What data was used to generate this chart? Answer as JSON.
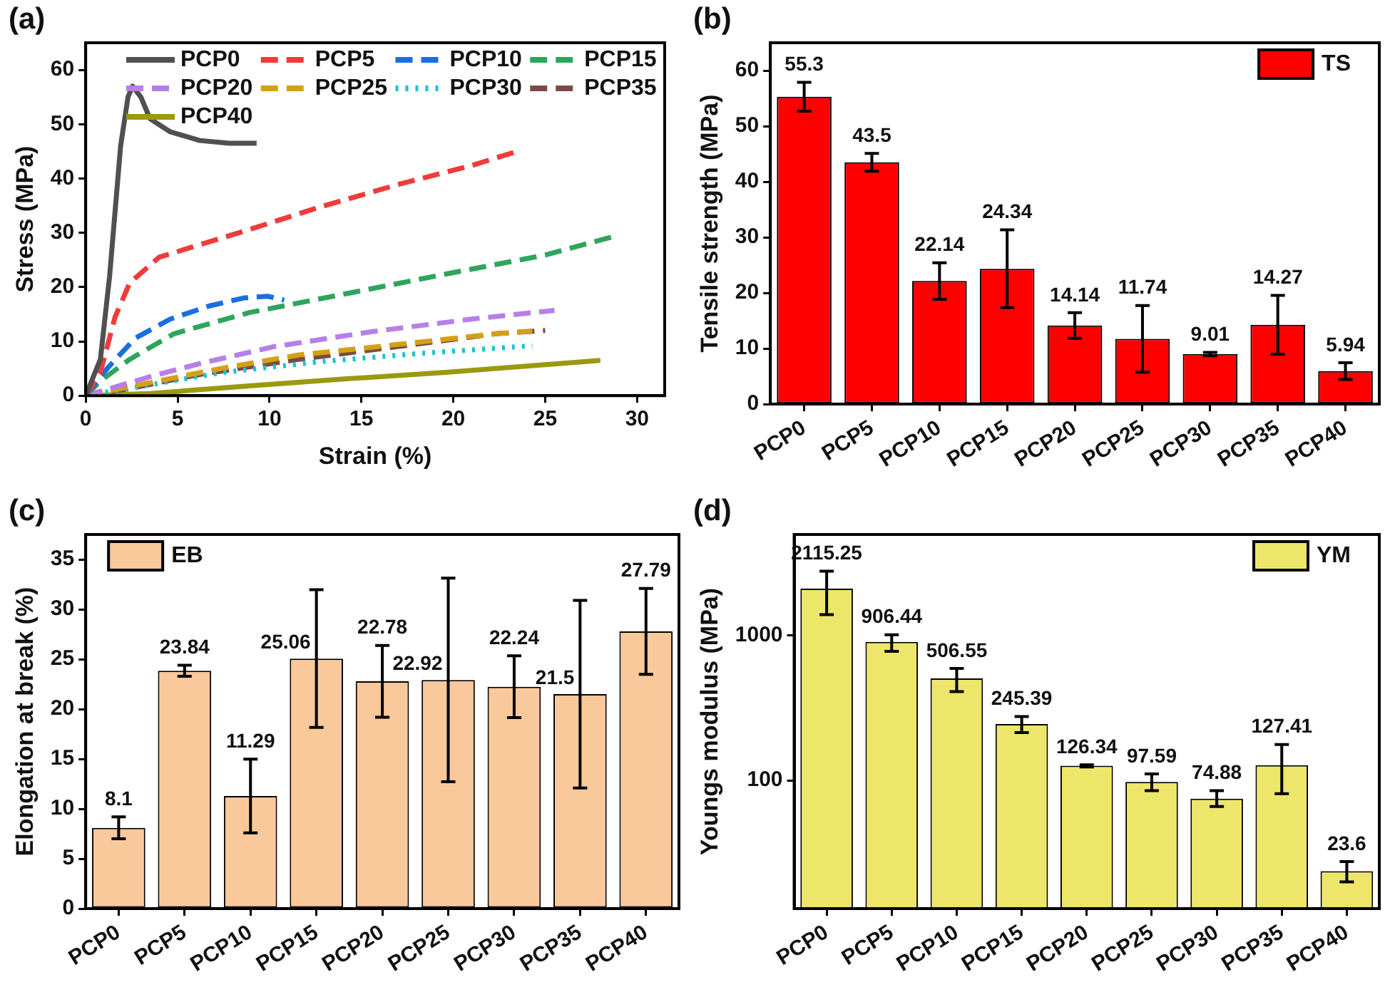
{
  "chart_data": [
    {
      "type": "line",
      "title": "(a)",
      "xlabel": "Strain (%)",
      "ylabel": "Stress (MPa)",
      "xlim": [
        0,
        31.5
      ],
      "xticks": [
        0,
        5,
        10,
        15,
        20,
        25,
        30
      ],
      "ylim": [
        0,
        65
      ],
      "yticks": [
        0,
        10,
        20,
        30,
        40,
        50,
        60
      ],
      "grid": false,
      "legend": "top",
      "marker": "none",
      "series": [
        {
          "name": "PCP0",
          "color": "#505050",
          "line_style": "solid",
          "x": [
            0,
            0.8,
            1.3,
            1.9,
            2.3,
            2.55,
            3,
            3.5,
            4.6,
            6.2,
            7.8,
            9.3
          ],
          "values": [
            0,
            6.7,
            22,
            46,
            55,
            57,
            55,
            51,
            48.6,
            47,
            46.5,
            46.5
          ]
        },
        {
          "name": "PCP5",
          "color": "#ef3b3b",
          "line_style": "dashed",
          "x": [
            0,
            0.8,
            1.6,
            2.4,
            4,
            6.2,
            8.9,
            12.9,
            16.9,
            21,
            23.5
          ],
          "values": [
            0,
            4.3,
            14.5,
            20.8,
            25.5,
            27.8,
            30.6,
            34.9,
            38.8,
            42.4,
            45
          ]
        },
        {
          "name": "PCP10",
          "color": "#1a6fdf",
          "line_style": "dashed",
          "x": [
            0,
            0.8,
            1.3,
            2.7,
            4.6,
            6.7,
            8.6,
            9.9,
            10.8
          ],
          "values": [
            0,
            3.5,
            5.5,
            10.6,
            14.1,
            16.5,
            18,
            18.3,
            17.6
          ]
        },
        {
          "name": "PCP15",
          "color": "#2ea55c",
          "line_style": "dashed",
          "x": [
            0,
            0.8,
            2.4,
            4.8,
            8.9,
            14.2,
            19.6,
            25,
            28.8
          ],
          "values": [
            0,
            2.7,
            6.7,
            11.4,
            15.3,
            18.8,
            22.4,
            25.9,
            29.4
          ]
        },
        {
          "name": "PCP20",
          "color": "#b77fe8",
          "line_style": "dashed",
          "x": [
            0,
            3.5,
            6.2,
            10.2,
            15.6,
            21,
            25.5
          ],
          "values": [
            0,
            3.5,
            5.9,
            9,
            11.8,
            14.1,
            15.7
          ]
        },
        {
          "name": "PCP25",
          "color": "#d4a017",
          "line_style": "dashed",
          "x": [
            0,
            3.5,
            7.5,
            11.6,
            16.9,
            22.3,
            24.3
          ],
          "values": [
            0,
            2.4,
            5.1,
            7.5,
            9.4,
            11.4,
            11.9
          ]
        },
        {
          "name": "PCP30",
          "color": "#18c4d0",
          "line_style": "dotted",
          "x": [
            0,
            3.5,
            7.5,
            12.9,
            18.3,
            24.3
          ],
          "values": [
            0,
            2,
            4.3,
            6.3,
            7.8,
            9.2
          ]
        },
        {
          "name": "PCP35",
          "color": "#7b4a43",
          "line_style": "dashed",
          "x": [
            0,
            2.2,
            6.2,
            11.6,
            16.9,
            22.3,
            25
          ],
          "values": [
            0,
            1.2,
            3.9,
            6.7,
            9,
            11.4,
            12
          ]
        },
        {
          "name": "PCP40",
          "color": "#9a9a10",
          "line_style": "solid",
          "x": [
            0,
            3.5,
            8.9,
            14.2,
            19.6,
            25,
            28
          ],
          "values": [
            0,
            0.4,
            1.8,
            3.1,
            4.3,
            5.7,
            6.5
          ]
        }
      ]
    },
    {
      "type": "bar",
      "title": "(b)",
      "ylabel": "Tensile strength (MPa)",
      "categories": [
        "PCP0",
        "PCP5",
        "PCP10",
        "PCP15",
        "PCP20",
        "PCP25",
        "PCP30",
        "PCP35",
        "PCP40"
      ],
      "ylim": [
        0,
        65
      ],
      "yticks": [
        0,
        10,
        20,
        30,
        40,
        50,
        60
      ],
      "grid": false,
      "legend": "top right",
      "data_labels": true,
      "series": [
        {
          "name": "TS",
          "color": "#ff0000",
          "values": [
            55.3,
            43.5,
            22.14,
            24.34,
            14.14,
            11.74,
            9.01,
            14.27,
            5.94
          ],
          "errors": [
            2.6,
            1.6,
            3.3,
            7,
            2.3,
            6,
            0.3,
            5.3,
            1.5
          ]
        }
      ]
    },
    {
      "type": "bar",
      "title": "(c)",
      "ylabel": "Elongation at break (%)",
      "categories": [
        "PCP0",
        "PCP5",
        "PCP10",
        "PCP15",
        "PCP20",
        "PCP25",
        "PCP30",
        "PCP35",
        "PCP40"
      ],
      "ylim": [
        0,
        37.5
      ],
      "yticks": [
        0,
        5,
        10,
        15,
        20,
        25,
        30,
        35
      ],
      "grid": false,
      "legend": "top left",
      "data_labels": true,
      "series": [
        {
          "name": "EB",
          "color": "#f9c89b",
          "values": [
            8.1,
            23.84,
            11.29,
            25.06,
            22.78,
            22.92,
            22.24,
            21.5,
            27.79
          ],
          "errors": [
            1.1,
            0.55,
            3.7,
            6.9,
            3.6,
            10.2,
            3.1,
            9.4,
            4.3
          ]
        }
      ]
    },
    {
      "type": "bar",
      "title": "(d)",
      "ylabel": "Youngs modulus (MPa)",
      "categories": [
        "PCP0",
        "PCP5",
        "PCP10",
        "PCP15",
        "PCP20",
        "PCP25",
        "PCP30",
        "PCP35",
        "PCP40"
      ],
      "log": true,
      "ylim": [
        13,
        5000
      ],
      "yticks": [
        100,
        1000
      ],
      "grid": false,
      "legend": "top right",
      "data_labels": true,
      "series": [
        {
          "name": "YM",
          "color": "#ede66a",
          "values": [
            2115.25,
            906.44,
            506.55,
            245.39,
            126.34,
            97.59,
            74.88,
            127.41,
            23.6
          ],
          "errors": [
            [
              1396,
              2790
            ],
            [
              779,
              1014
            ],
            [
              411,
              594
            ],
            [
              214,
              276
            ],
            [
              124,
              128
            ],
            [
              85,
              111
            ],
            [
              66,
              85
            ],
            [
              81,
              177
            ],
            [
              19.9,
              27.5
            ]
          ]
        }
      ]
    }
  ]
}
